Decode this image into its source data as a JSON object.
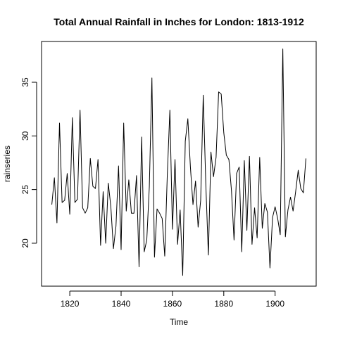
{
  "chart_data": {
    "type": "line",
    "title": "Total Annual Rainfall in Inches for London: 1813-1912",
    "xlabel": "Time",
    "ylabel": "rainseries",
    "xlim": [
      1809,
      1916
    ],
    "ylim": [
      16,
      38.8
    ],
    "x_ticks": [
      1820,
      1840,
      1860,
      1880,
      1900
    ],
    "y_ticks": [
      20,
      25,
      30,
      35
    ],
    "series": [
      {
        "x": [
          1813,
          1814,
          1815,
          1816,
          1817,
          1818,
          1819,
          1820,
          1821,
          1822,
          1823,
          1824,
          1825,
          1826,
          1827,
          1828,
          1829,
          1830,
          1831,
          1832,
          1833,
          1834,
          1835,
          1836,
          1837,
          1838,
          1839,
          1840,
          1841,
          1842,
          1843,
          1844,
          1845,
          1846,
          1847,
          1848,
          1849,
          1850,
          1851,
          1852,
          1853,
          1854,
          1855,
          1856,
          1857,
          1858,
          1859,
          1860,
          1861,
          1862,
          1863,
          1864,
          1865,
          1866,
          1867,
          1868,
          1869,
          1870,
          1871,
          1872,
          1873,
          1874,
          1875,
          1876,
          1877,
          1878,
          1879,
          1880,
          1881,
          1882,
          1883,
          1884,
          1885,
          1886,
          1887,
          1888,
          1889,
          1890,
          1891,
          1892,
          1893,
          1894,
          1895,
          1896,
          1897,
          1898,
          1899,
          1900,
          1901,
          1902,
          1903,
          1904,
          1905,
          1906,
          1907,
          1908,
          1909,
          1910,
          1911,
          1912
        ],
        "values": [
          23.6,
          26.1,
          21.9,
          31.2,
          23.8,
          24.0,
          26.5,
          22.7,
          31.7,
          23.8,
          24.1,
          32.4,
          23.3,
          22.8,
          23.3,
          27.9,
          25.3,
          25.1,
          27.8,
          19.8,
          24.8,
          20.0,
          25.6,
          23.4,
          19.5,
          21.6,
          27.2,
          19.4,
          31.2,
          23.0,
          25.9,
          22.8,
          22.8,
          26.3,
          17.8,
          29.9,
          19.2,
          20.3,
          25.3,
          35.4,
          18.7,
          23.2,
          22.8,
          22.3,
          18.8,
          26.4,
          32.4,
          21.3,
          27.8,
          19.9,
          23.1,
          17.0,
          29.5,
          31.6,
          27.1,
          23.6,
          25.8,
          21.5,
          24.0,
          33.8,
          25.5,
          18.9,
          28.5,
          26.2,
          28.0,
          34.1,
          33.9,
          30.3,
          28.2,
          27.8,
          24.9,
          20.3,
          26.5,
          27.1,
          19.2,
          27.7,
          21.2,
          28.1,
          19.9,
          23.3,
          20.5,
          28.0,
          21.4,
          23.7,
          22.9,
          17.7,
          22.4,
          23.4,
          22.3,
          20.8,
          38.1,
          20.6,
          23.1,
          24.3,
          23.0,
          24.8,
          26.8,
          25.1,
          24.7,
          27.9
        ]
      }
    ]
  }
}
